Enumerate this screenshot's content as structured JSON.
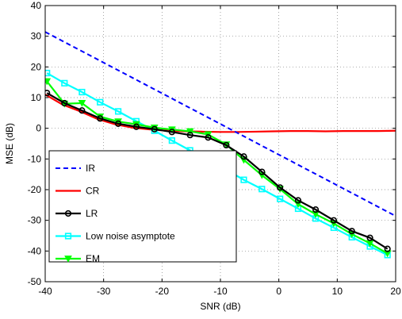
{
  "chart_data": {
    "type": "line",
    "xlabel": "SNR (dB)",
    "ylabel": "MSE (dB)",
    "xlim": [
      -40,
      20
    ],
    "ylim": [
      -50,
      40
    ],
    "xticks": [
      "-40",
      "-30",
      "-20",
      "-10",
      "0",
      "10",
      "20"
    ],
    "yticks": [
      "-50",
      "-40",
      "-30",
      "-20",
      "-10",
      "0",
      "10",
      "20",
      "30",
      "40"
    ],
    "grid": true,
    "legend_position": "bottom-left",
    "series": [
      {
        "name": "IR",
        "color": "#0000ff",
        "style": "dashed",
        "marker": "none",
        "x": [
          -40,
          20
        ],
        "y": [
          31.4,
          -28.6
        ]
      },
      {
        "name": "CR",
        "color": "#ff0000",
        "style": "solid",
        "marker": "none",
        "x": [
          -40,
          -37,
          -34,
          -31,
          -28,
          -25,
          -22,
          -19,
          -16,
          -13,
          -10,
          -7,
          -4,
          -1,
          2,
          5,
          8,
          11,
          14,
          17,
          20
        ],
        "y": [
          11,
          7.7,
          5.5,
          3,
          1.3,
          0.2,
          -0.4,
          -0.8,
          -1.0,
          -1.1,
          -1.2,
          -1.2,
          -1.1,
          -1.0,
          -0.9,
          -0.9,
          -1.0,
          -0.9,
          -0.9,
          -0.9,
          -0.8
        ]
      },
      {
        "name": "LR",
        "color": "#000000",
        "style": "solid",
        "marker": "circle",
        "x": [
          -39.7,
          -36.7,
          -33.7,
          -30.6,
          -27.5,
          -24.4,
          -21.3,
          -18.3,
          -15.2,
          -12.1,
          -9.0,
          -6.0,
          -2.9,
          0.2,
          3.3,
          6.3,
          9.4,
          12.5,
          15.6,
          18.6
        ],
        "y": [
          11.5,
          8.2,
          5.8,
          3.2,
          1.5,
          0.5,
          -0.3,
          -1.2,
          -2.2,
          -3.0,
          -5.5,
          -9.2,
          -14.2,
          -19.3,
          -23.5,
          -26.5,
          -30,
          -33.5,
          -35.7,
          -39.3
        ]
      },
      {
        "name": "Low noise asymptote",
        "color": "#00ffff",
        "style": "solid",
        "marker": "square",
        "x": [
          -39.7,
          -36.7,
          -33.7,
          -30.6,
          -27.5,
          -24.4,
          -21.3,
          -18.3,
          -15.2,
          -12.1,
          -9.0,
          -6.0,
          -2.9,
          0.2,
          3.3,
          6.3,
          9.4,
          12.5,
          15.6,
          18.6
        ],
        "y": [
          18,
          14.7,
          11.8,
          8.5,
          5.5,
          2.3,
          -0.8,
          -4.0,
          -7.2,
          -10.5,
          -13.5,
          -16.8,
          -19.8,
          -23.0,
          -26.2,
          -29.4,
          -32.4,
          -35.5,
          -38.5,
          -41.3
        ]
      },
      {
        "name": "EM",
        "color": "#00ff00",
        "style": "solid",
        "marker": "triangle-down",
        "x": [
          -39.7,
          -36.7,
          -33.7,
          -30.6,
          -27.5,
          -24.4,
          -21.3,
          -18.3,
          -15.2,
          -12.1,
          -9.0,
          -6.0,
          -2.9,
          0.2,
          3.3,
          6.3,
          9.4,
          12.5,
          15.6,
          18.6
        ],
        "y": [
          15.3,
          8.0,
          8.2,
          3.8,
          2.2,
          1.3,
          0.2,
          -0.4,
          -1.0,
          -2.0,
          -5.3,
          -10.3,
          -15.3,
          -19.8,
          -24.7,
          -28.0,
          -31.0,
          -34.5,
          -37.5,
          -40.8
        ]
      }
    ]
  }
}
